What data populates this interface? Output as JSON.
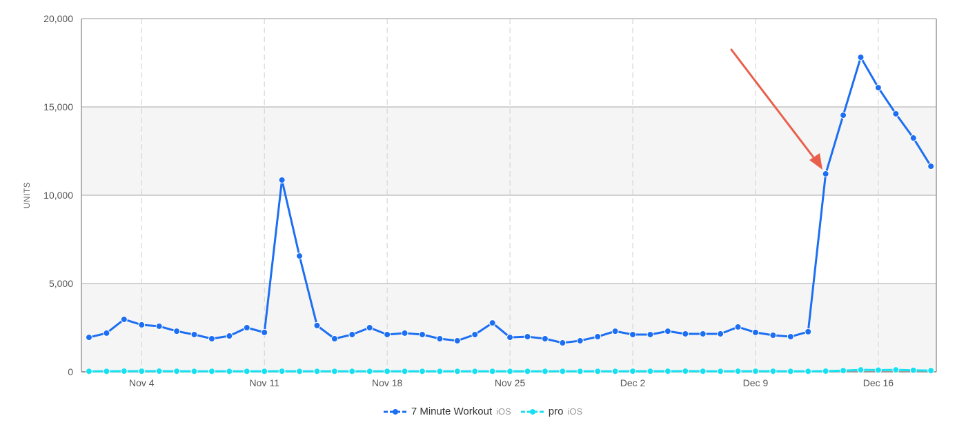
{
  "chart_data": {
    "type": "line",
    "title": "",
    "xlabel": "",
    "ylabel": "UNITS",
    "ylim": [
      0,
      20000
    ],
    "yticks": [
      "0",
      "5,000",
      "10,000",
      "15,000",
      "20,000"
    ],
    "ytick_values": [
      0,
      5000,
      10000,
      15000,
      20000
    ],
    "xticks": [
      "Nov 4",
      "Nov 11",
      "Nov 18",
      "Nov 25",
      "Dec 2",
      "Dec 9",
      "Dec 16"
    ],
    "xtick_index": [
      3,
      10,
      17,
      24,
      31,
      38,
      45
    ],
    "x_start": "Nov 1",
    "x_end": "Dec 19",
    "grid": true,
    "legend_placement": "bottom",
    "series": [
      {
        "name": "7 Minute Workout",
        "platform": "iOS",
        "color": "#1c6ef2",
        "values": [
          1950,
          2190,
          2970,
          2660,
          2580,
          2300,
          2110,
          1875,
          2030,
          2500,
          2230,
          10860,
          6560,
          2620,
          1875,
          2110,
          2500,
          2110,
          2190,
          2110,
          1875,
          1760,
          2110,
          2770,
          1950,
          1990,
          1875,
          1640,
          1760,
          1990,
          2300,
          2110,
          2110,
          2300,
          2150,
          2150,
          2150,
          2540,
          2230,
          2070,
          1990,
          2270,
          11210,
          14530,
          17810,
          16090,
          14610,
          13240,
          11640
        ]
      },
      {
        "name": "pro",
        "platform": "iOS",
        "color": "#19e0f0",
        "values": [
          30,
          30,
          40,
          35,
          40,
          35,
          30,
          30,
          30,
          30,
          30,
          35,
          30,
          30,
          30,
          30,
          30,
          30,
          30,
          30,
          30,
          30,
          30,
          30,
          30,
          30,
          30,
          30,
          30,
          30,
          30,
          35,
          35,
          35,
          40,
          35,
          30,
          35,
          35,
          35,
          30,
          30,
          40,
          70,
          110,
          100,
          110,
          90,
          70
        ]
      }
    ],
    "annotation": {
      "type": "arrow",
      "color": "#e8604c",
      "points_to": "Dec 13"
    }
  }
}
